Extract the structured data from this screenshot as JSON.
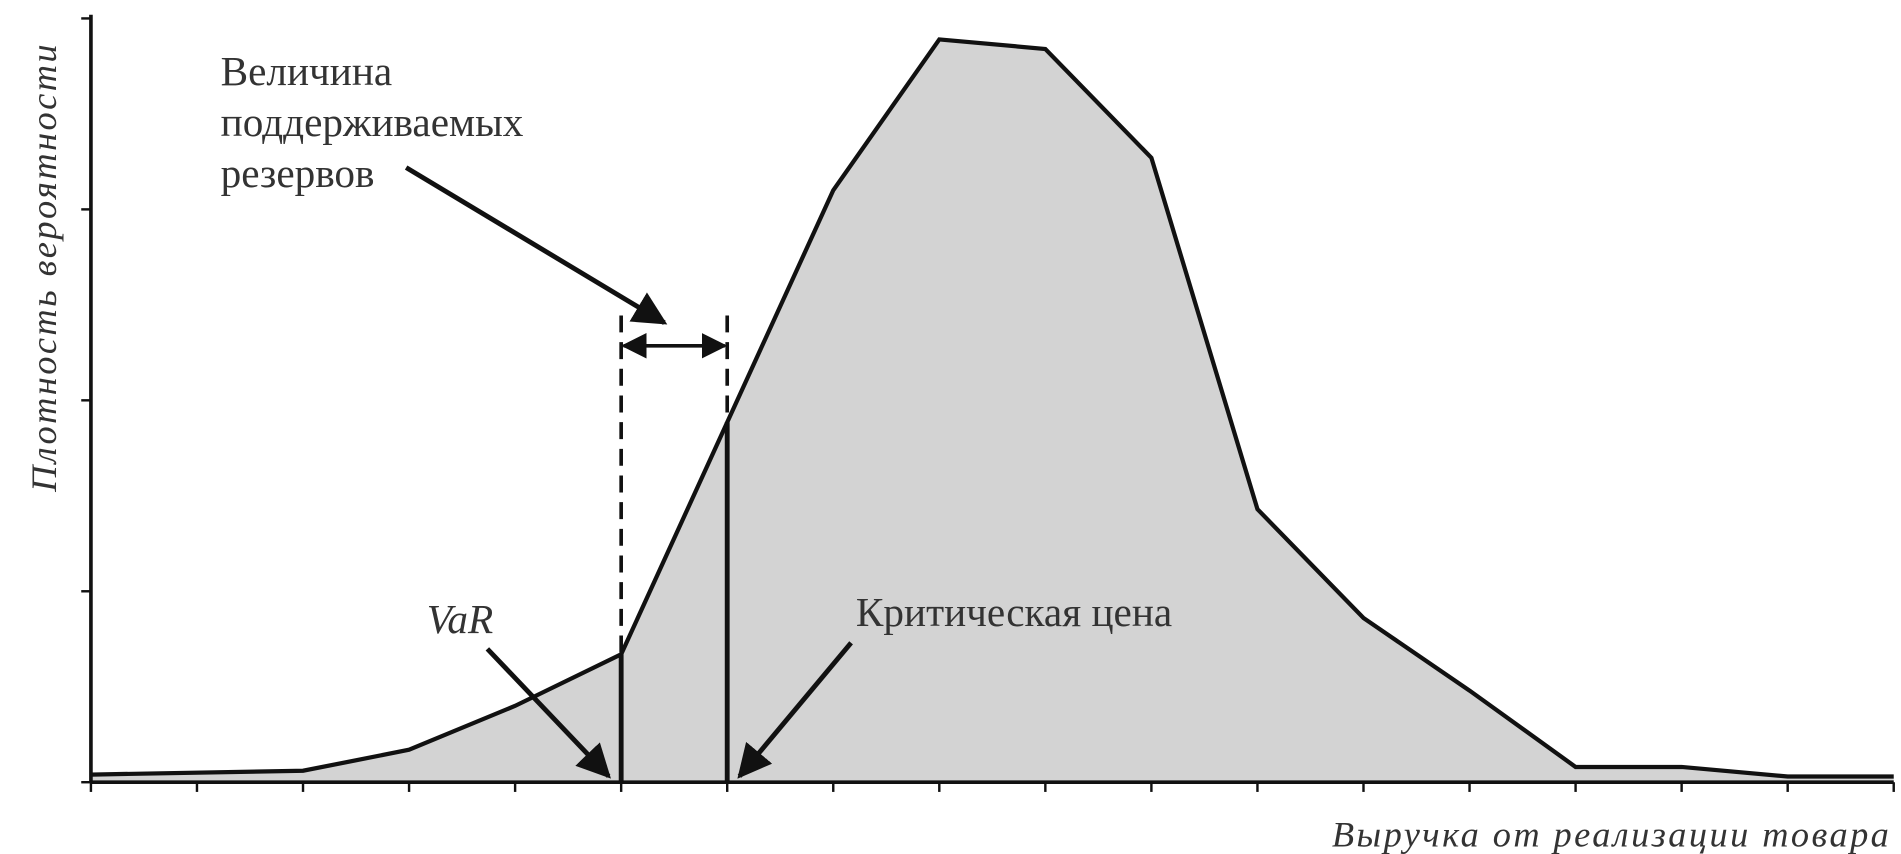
{
  "chart_data": {
    "type": "area",
    "xlabel": "Выручка от реализации товара",
    "ylabel": "Плотность вероятности",
    "x": [
      0,
      2,
      3,
      4,
      5,
      7,
      8,
      9,
      10,
      11,
      12,
      13,
      14,
      15,
      16,
      17
    ],
    "series": [
      {
        "color": "#d3d3d3",
        "values": [
          0.04,
          0.06,
          0.17,
          0.4,
          0.67,
          3.1,
          3.89,
          3.84,
          3.27,
          1.43,
          0.86,
          0.48,
          0.08,
          0.08,
          0.03,
          0.03
        ]
      }
    ],
    "xlim": [
      0,
      17
    ],
    "ylim": [
      0,
      4
    ],
    "xticks": [
      0,
      1,
      2,
      3,
      4,
      5,
      6,
      7,
      8,
      9,
      10,
      11,
      12,
      13,
      14,
      15,
      16,
      17
    ],
    "yticks": [
      0,
      1,
      2,
      3,
      4
    ],
    "markers": [
      {
        "label": "VaR",
        "x": 5
      },
      {
        "label": "Критическая цена",
        "x": 6
      }
    ],
    "reserve_label": [
      "Величина",
      "поддерживаемых",
      "резервов"
    ]
  }
}
